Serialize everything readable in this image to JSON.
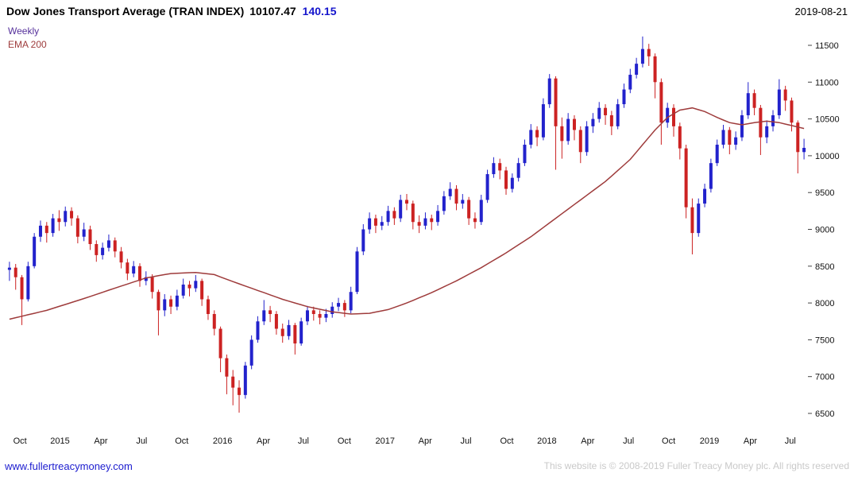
{
  "header": {
    "title": "Dow Jones Transport Average (TRAN INDEX)",
    "last_price": "10107.47",
    "change": "140.15",
    "date": "2019-08-21"
  },
  "legend": {
    "timeframe": "Weekly",
    "overlay": "EMA 200"
  },
  "footer": {
    "link": "www.fullertreacymoney.com",
    "copyright": "This website is © 2008-2019 Fuller Treacy Money plc. All rights reserved"
  },
  "colors": {
    "up": "#2222cc",
    "down": "#cc2222",
    "ema": "#9e3b3b",
    "weekly_label": "#55309b",
    "ema_label": "#9e3b3b",
    "change_text": "#1515cc",
    "link": "#1c1ccf",
    "copyright_text": "#c9c9c9",
    "axis_text": "#111111"
  },
  "chart_data": {
    "type": "candlestick",
    "title": "Dow Jones Transport Average (TRAN INDEX)",
    "timeframe": "Weekly",
    "overlay": "EMA 200",
    "last_close": 10107.47,
    "change": 140.15,
    "as_of_date": "2019-08-21",
    "x_range": [
      "2014-09",
      "2019-08-21"
    ],
    "ylim": [
      6230,
      11840
    ],
    "grid": false,
    "y_axis_side": "right",
    "legend_position": "top-left",
    "y_ticks": [
      6500,
      7000,
      7500,
      8000,
      8500,
      9000,
      9500,
      10000,
      10500,
      11000,
      11500
    ],
    "x_ticks": [
      {
        "label": "Oct",
        "pos": 0.017
      },
      {
        "label": "2015",
        "pos": 0.067
      },
      {
        "label": "Apr",
        "pos": 0.118
      },
      {
        "label": "Jul",
        "pos": 0.169
      },
      {
        "label": "Oct",
        "pos": 0.219
      },
      {
        "label": "2016",
        "pos": 0.27
      },
      {
        "label": "Apr",
        "pos": 0.321
      },
      {
        "label": "Jul",
        "pos": 0.371
      },
      {
        "label": "Oct",
        "pos": 0.422
      },
      {
        "label": "2017",
        "pos": 0.473
      },
      {
        "label": "Apr",
        "pos": 0.523
      },
      {
        "label": "Jul",
        "pos": 0.574
      },
      {
        "label": "Oct",
        "pos": 0.625
      },
      {
        "label": "2018",
        "pos": 0.675
      },
      {
        "label": "Apr",
        "pos": 0.726
      },
      {
        "label": "Jul",
        "pos": 0.777
      },
      {
        "label": "Oct",
        "pos": 0.827
      },
      {
        "label": "2019",
        "pos": 0.878
      },
      {
        "label": "Apr",
        "pos": 0.929
      },
      {
        "label": "Jul",
        "pos": 0.979
      }
    ],
    "candles_format": [
      "open",
      "high",
      "low",
      "close"
    ],
    "candles": [
      [
        8450,
        8560,
        8300,
        8480
      ],
      [
        8480,
        8530,
        8180,
        8350
      ],
      [
        8350,
        8380,
        7700,
        8050
      ],
      [
        8050,
        8560,
        8020,
        8500
      ],
      [
        8500,
        8950,
        8470,
        8900
      ],
      [
        8900,
        9120,
        8830,
        9050
      ],
      [
        9050,
        9100,
        8820,
        8950
      ],
      [
        8950,
        9210,
        8900,
        9150
      ],
      [
        9150,
        9260,
        8980,
        9100
      ],
      [
        9100,
        9310,
        9040,
        9250
      ],
      [
        9250,
        9300,
        9050,
        9150
      ],
      [
        9150,
        9190,
        8810,
        8900
      ],
      [
        8900,
        9090,
        8840,
        9000
      ],
      [
        9000,
        9050,
        8720,
        8800
      ],
      [
        8800,
        8850,
        8560,
        8650
      ],
      [
        8650,
        8820,
        8590,
        8750
      ],
      [
        8750,
        8930,
        8700,
        8850
      ],
      [
        8850,
        8890,
        8620,
        8700
      ],
      [
        8700,
        8760,
        8470,
        8550
      ],
      [
        8550,
        8600,
        8310,
        8400
      ],
      [
        8400,
        8570,
        8350,
        8500
      ],
      [
        8500,
        8540,
        8220,
        8300
      ],
      [
        8300,
        8430,
        8240,
        8350
      ],
      [
        8350,
        8390,
        8060,
        8150
      ],
      [
        8150,
        8180,
        7560,
        7900
      ],
      [
        7900,
        8120,
        7820,
        8050
      ],
      [
        8050,
        8100,
        7850,
        7950
      ],
      [
        7950,
        8180,
        7900,
        8100
      ],
      [
        8100,
        8330,
        8060,
        8250
      ],
      [
        8250,
        8300,
        8090,
        8200
      ],
      [
        8200,
        8380,
        8150,
        8300
      ],
      [
        8300,
        8330,
        7960,
        8050
      ],
      [
        8050,
        8100,
        7770,
        7850
      ],
      [
        7850,
        7900,
        7560,
        7650
      ],
      [
        7650,
        7680,
        7060,
        7250
      ],
      [
        7250,
        7300,
        6760,
        7000
      ],
      [
        7000,
        7090,
        6610,
        6850
      ],
      [
        6850,
        6950,
        6510,
        6750
      ],
      [
        6750,
        7200,
        6700,
        7150
      ],
      [
        7150,
        7560,
        7100,
        7500
      ],
      [
        7500,
        7820,
        7460,
        7750
      ],
      [
        7750,
        8040,
        7700,
        7900
      ],
      [
        7900,
        7960,
        7740,
        7850
      ],
      [
        7850,
        7890,
        7570,
        7650
      ],
      [
        7650,
        7720,
        7460,
        7550
      ],
      [
        7550,
        7770,
        7500,
        7700
      ],
      [
        7700,
        7730,
        7300,
        7450
      ],
      [
        7450,
        7800,
        7420,
        7750
      ],
      [
        7750,
        7960,
        7700,
        7900
      ],
      [
        7900,
        7950,
        7760,
        7850
      ],
      [
        7850,
        7900,
        7710,
        7800
      ],
      [
        7800,
        7920,
        7740,
        7850
      ],
      [
        7850,
        8010,
        7800,
        7950
      ],
      [
        7950,
        8070,
        7890,
        8000
      ],
      [
        8000,
        8040,
        7810,
        7900
      ],
      [
        7900,
        8220,
        7860,
        8150
      ],
      [
        8150,
        8760,
        8120,
        8700
      ],
      [
        8700,
        9070,
        8650,
        9000
      ],
      [
        9000,
        9230,
        8940,
        9150
      ],
      [
        9150,
        9200,
        8950,
        9050
      ],
      [
        9050,
        9180,
        8990,
        9100
      ],
      [
        9100,
        9320,
        9050,
        9250
      ],
      [
        9250,
        9300,
        9060,
        9150
      ],
      [
        9150,
        9470,
        9100,
        9400
      ],
      [
        9400,
        9480,
        9260,
        9350
      ],
      [
        9350,
        9390,
        9000,
        9100
      ],
      [
        9100,
        9190,
        8950,
        9050
      ],
      [
        9050,
        9230,
        9000,
        9150
      ],
      [
        9150,
        9200,
        8990,
        9100
      ],
      [
        9100,
        9330,
        9050,
        9250
      ],
      [
        9250,
        9520,
        9200,
        9450
      ],
      [
        9450,
        9640,
        9400,
        9550
      ],
      [
        9550,
        9600,
        9260,
        9350
      ],
      [
        9350,
        9480,
        9280,
        9400
      ],
      [
        9400,
        9440,
        9060,
        9150
      ],
      [
        9150,
        9230,
        9010,
        9100
      ],
      [
        9100,
        9470,
        9060,
        9400
      ],
      [
        9400,
        9810,
        9360,
        9750
      ],
      [
        9750,
        9980,
        9700,
        9900
      ],
      [
        9900,
        9960,
        9680,
        9800
      ],
      [
        9800,
        9850,
        9470,
        9550
      ],
      [
        9550,
        9760,
        9500,
        9700
      ],
      [
        9700,
        9970,
        9650,
        9900
      ],
      [
        9900,
        10220,
        9860,
        10150
      ],
      [
        10150,
        10430,
        10100,
        10350
      ],
      [
        10350,
        10400,
        10130,
        10250
      ],
      [
        10250,
        10780,
        10210,
        10700
      ],
      [
        10700,
        11110,
        10650,
        11050
      ],
      [
        11050,
        11080,
        9810,
        10400
      ],
      [
        10400,
        10520,
        9960,
        10200
      ],
      [
        10200,
        10580,
        10150,
        10500
      ],
      [
        10500,
        10550,
        10210,
        10350
      ],
      [
        10350,
        10400,
        9900,
        10050
      ],
      [
        10050,
        10470,
        10000,
        10400
      ],
      [
        10400,
        10580,
        10310,
        10500
      ],
      [
        10500,
        10730,
        10450,
        10650
      ],
      [
        10650,
        10700,
        10420,
        10550
      ],
      [
        10550,
        10610,
        10280,
        10400
      ],
      [
        10400,
        10770,
        10360,
        10700
      ],
      [
        10700,
        10980,
        10650,
        10900
      ],
      [
        10900,
        11180,
        10850,
        11100
      ],
      [
        11100,
        11330,
        11050,
        11250
      ],
      [
        11250,
        11620,
        11200,
        11450
      ],
      [
        11450,
        11520,
        11220,
        11350
      ],
      [
        11350,
        11390,
        10780,
        11000
      ],
      [
        11000,
        11050,
        10150,
        10450
      ],
      [
        10450,
        10720,
        10380,
        10650
      ],
      [
        10650,
        10700,
        10260,
        10400
      ],
      [
        10400,
        10450,
        9950,
        10100
      ],
      [
        10100,
        10150,
        9150,
        9300
      ],
      [
        9300,
        9420,
        8660,
        8950
      ],
      [
        8950,
        9420,
        8900,
        9350
      ],
      [
        9350,
        9620,
        9300,
        9550
      ],
      [
        9550,
        9960,
        9500,
        9900
      ],
      [
        9900,
        10220,
        9860,
        10150
      ],
      [
        10150,
        10420,
        10100,
        10350
      ],
      [
        10350,
        10390,
        10020,
        10150
      ],
      [
        10150,
        10330,
        10080,
        10250
      ],
      [
        10250,
        10620,
        10200,
        10550
      ],
      [
        10550,
        11000,
        10500,
        10850
      ],
      [
        10850,
        10900,
        10550,
        10650
      ],
      [
        10650,
        10690,
        10010,
        10250
      ],
      [
        10250,
        10480,
        10170,
        10400
      ],
      [
        10400,
        10620,
        10330,
        10550
      ],
      [
        10550,
        11040,
        10500,
        10900
      ],
      [
        10900,
        10950,
        10610,
        10750
      ],
      [
        10750,
        10790,
        10330,
        10450
      ],
      [
        10450,
        10480,
        9760,
        10050
      ],
      [
        10050,
        10230,
        9950,
        10107
      ]
    ],
    "ema_200_anchors_format": [
      "candle_index",
      "value"
    ],
    "ema_200_anchors": [
      [
        0,
        7780
      ],
      [
        6,
        7900
      ],
      [
        12,
        8060
      ],
      [
        18,
        8230
      ],
      [
        22,
        8340
      ],
      [
        26,
        8400
      ],
      [
        30,
        8415
      ],
      [
        33,
        8385
      ],
      [
        36,
        8290
      ],
      [
        40,
        8170
      ],
      [
        44,
        8050
      ],
      [
        48,
        7950
      ],
      [
        52,
        7880
      ],
      [
        55,
        7850
      ],
      [
        58,
        7860
      ],
      [
        61,
        7910
      ],
      [
        64,
        8000
      ],
      [
        68,
        8140
      ],
      [
        72,
        8300
      ],
      [
        76,
        8480
      ],
      [
        80,
        8680
      ],
      [
        84,
        8900
      ],
      [
        88,
        9150
      ],
      [
        92,
        9400
      ],
      [
        96,
        9650
      ],
      [
        100,
        9950
      ],
      [
        102,
        10150
      ],
      [
        104,
        10350
      ],
      [
        106,
        10520
      ],
      [
        108,
        10620
      ],
      [
        110,
        10650
      ],
      [
        112,
        10600
      ],
      [
        114,
        10520
      ],
      [
        116,
        10450
      ],
      [
        118,
        10420
      ],
      [
        120,
        10450
      ],
      [
        122,
        10470
      ],
      [
        124,
        10450
      ],
      [
        126,
        10410
      ],
      [
        128,
        10370
      ]
    ]
  }
}
